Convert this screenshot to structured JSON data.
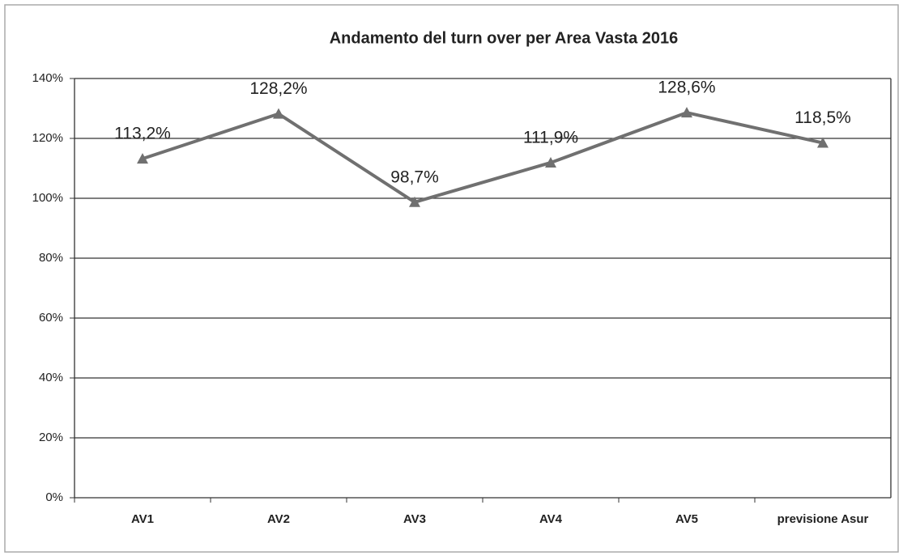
{
  "chart_data": {
    "type": "line",
    "title": "Andamento  del turn over per Area Vasta 2016",
    "categories": [
      "AV1",
      "AV2",
      "AV3",
      "AV4",
      "AV5",
      "previsione Asur"
    ],
    "values": [
      113.2,
      128.2,
      98.7,
      111.9,
      128.6,
      118.5
    ],
    "value_labels": [
      "113,2%",
      "128,2%",
      "98,7%",
      "111,9%",
      "128,6%",
      "118,5%"
    ],
    "color": "#707070",
    "ylim": [
      0,
      140
    ],
    "yticks": [
      {
        "value": 0,
        "label": "0%"
      },
      {
        "value": 20,
        "label": "20%"
      },
      {
        "value": 40,
        "label": "40%"
      },
      {
        "value": 60,
        "label": "60%"
      },
      {
        "value": 80,
        "label": "80%"
      },
      {
        "value": 100,
        "label": "100%"
      },
      {
        "value": 120,
        "label": "120%"
      },
      {
        "value": 140,
        "label": "140%"
      }
    ],
    "grid": true
  }
}
